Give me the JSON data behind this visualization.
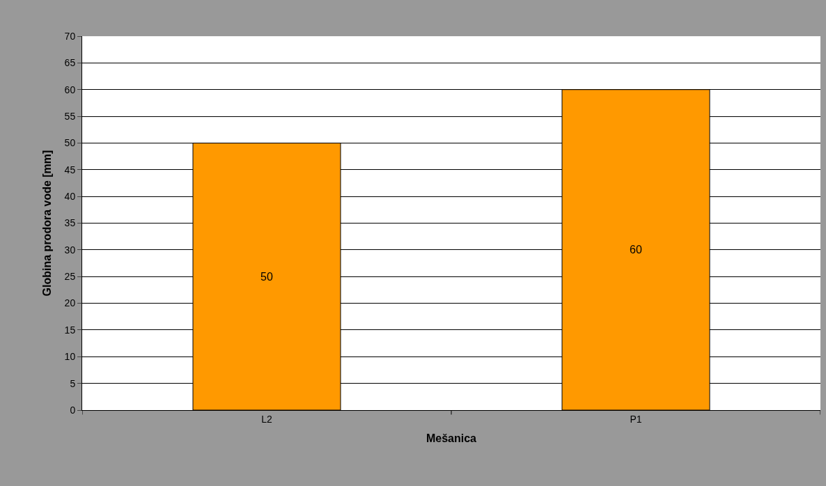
{
  "chart_data": {
    "type": "bar",
    "xlabel": "Mešanica",
    "ylabel": "Globina prodora vode [mm]",
    "categories": [
      "L2",
      "P1"
    ],
    "series": [
      {
        "color": "#ff9900",
        "values": [
          50,
          60
        ]
      }
    ],
    "ylim": [
      0,
      70
    ],
    "yticks": [
      0,
      5,
      10,
      15,
      20,
      25,
      30,
      35,
      40,
      45,
      50,
      55,
      60,
      65,
      70
    ],
    "grid": "y",
    "data_labels": true
  }
}
